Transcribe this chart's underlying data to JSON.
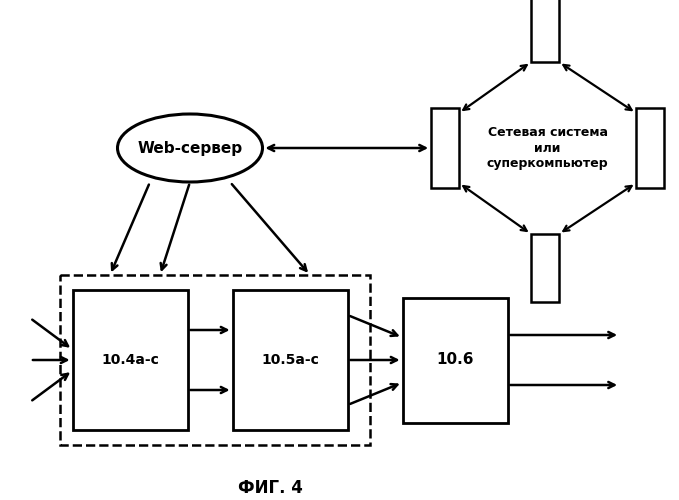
{
  "title": "ФИГ. 4",
  "bg_color": "#ffffff",
  "web_server_label": "Web-сервер",
  "network_label": "Сетевая система\nили\nсуперкомпьютер",
  "box1_label": "10.4а-с",
  "box2_label": "10.5а-с",
  "box3_label": "10.6",
  "line_color": "#000000",
  "box_facecolor": "#ffffff",
  "box_edgecolor": "#000000"
}
